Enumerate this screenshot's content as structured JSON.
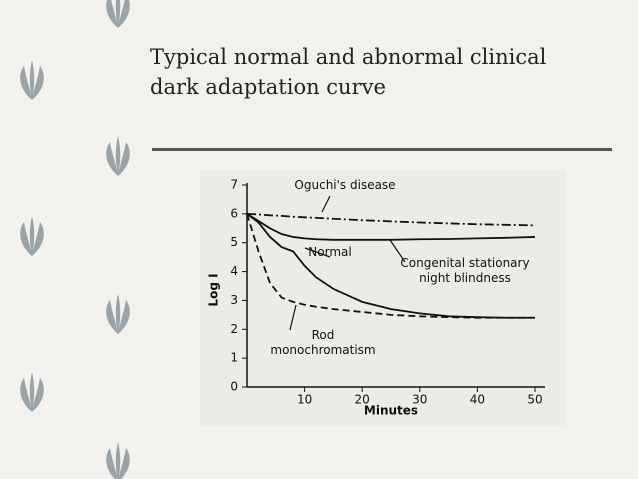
{
  "slide": {
    "title": "Typical normal and abnormal clinical dark adaptation curve"
  },
  "chart_data": {
    "type": "line",
    "x_label": "Minutes",
    "y_label": "Log I",
    "x": [
      0,
      2,
      4,
      6,
      8,
      10,
      12,
      15,
      20,
      25,
      30,
      35,
      40,
      45,
      50
    ],
    "series": [
      {
        "name": "Oguchi's disease",
        "color": "#111111",
        "dash": "dash-dot",
        "values": [
          6.0,
          5.98,
          5.95,
          5.93,
          5.9,
          5.88,
          5.86,
          5.83,
          5.78,
          5.74,
          5.7,
          5.67,
          5.64,
          5.62,
          5.6
        ]
      },
      {
        "name": "Normal",
        "color": "#111111",
        "dash": "solid",
        "values": [
          6.0,
          5.7,
          5.2,
          4.85,
          4.7,
          4.2,
          3.8,
          3.4,
          2.95,
          2.7,
          2.55,
          2.45,
          2.42,
          2.4,
          2.4
        ]
      },
      {
        "name": "Congenital stationary night blindness",
        "color": "#111111",
        "dash": "solid",
        "values": [
          6.0,
          5.75,
          5.5,
          5.3,
          5.2,
          5.15,
          5.12,
          5.1,
          5.1,
          5.1,
          5.12,
          5.13,
          5.15,
          5.17,
          5.2
        ]
      },
      {
        "name": "Rod monochromatism",
        "color": "#111111",
        "dash": "dashed",
        "values": [
          6.0,
          4.7,
          3.6,
          3.1,
          2.95,
          2.85,
          2.78,
          2.7,
          2.6,
          2.5,
          2.45,
          2.42,
          2.4,
          2.4,
          2.4
        ]
      }
    ],
    "xlim": [
      0,
      50
    ],
    "xticks": [
      10,
      20,
      30,
      40,
      50
    ],
    "ylim": [
      0,
      7
    ],
    "yticks": [
      0,
      1,
      2,
      3,
      4,
      5,
      6,
      7
    ],
    "grid": false
  }
}
